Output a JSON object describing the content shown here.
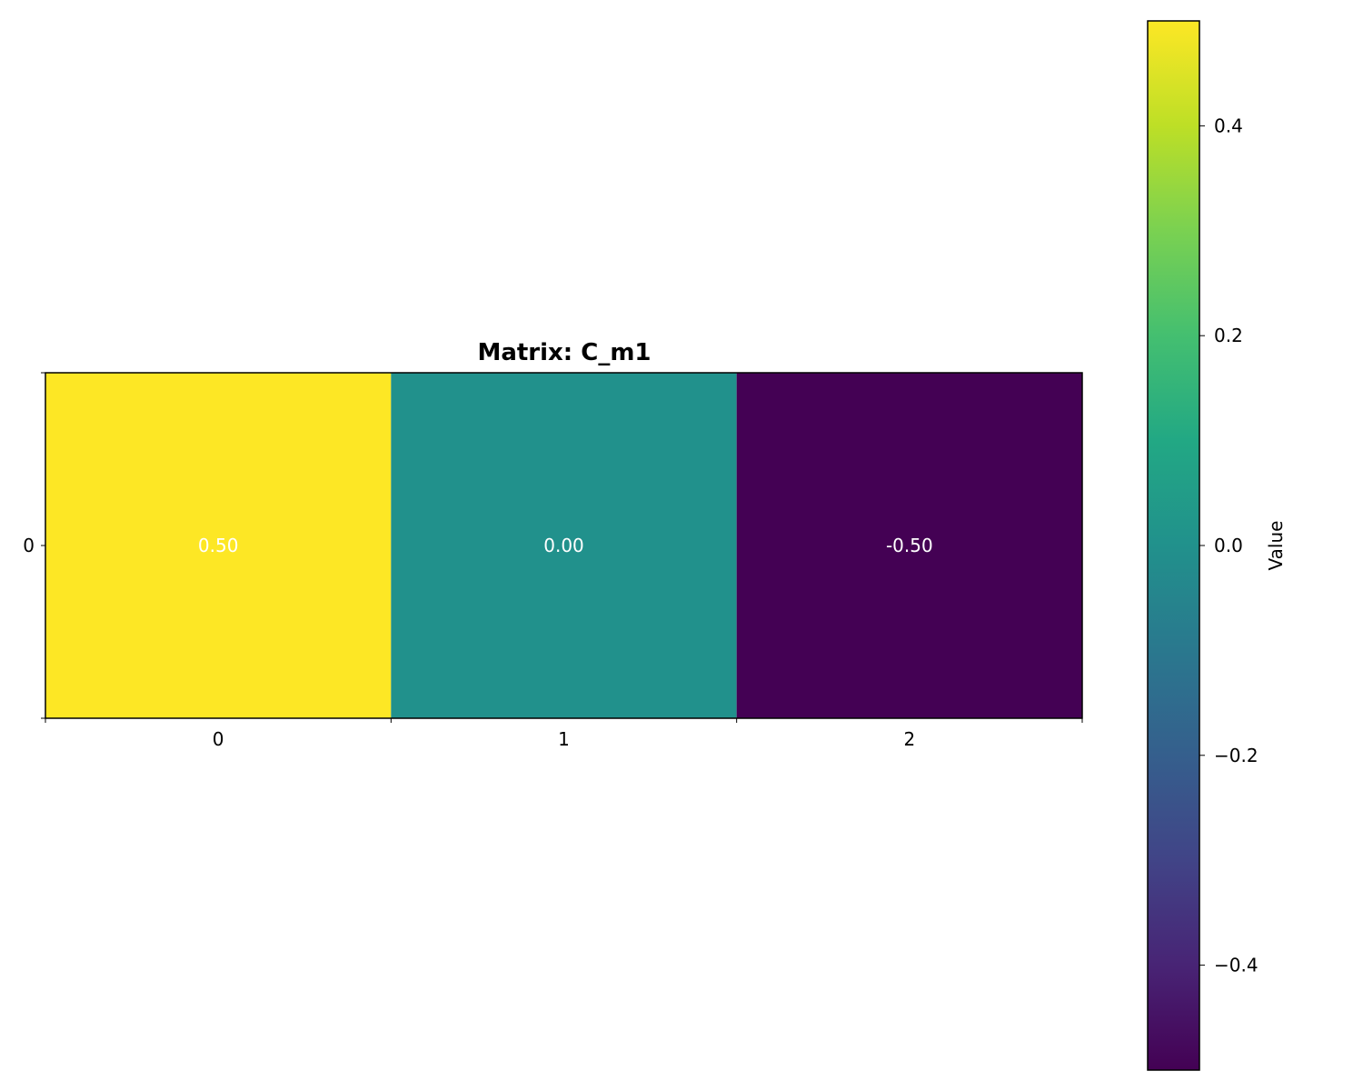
{
  "chart_data": {
    "type": "heatmap",
    "title": "Matrix: C_m1",
    "rows": [
      "0"
    ],
    "columns": [
      "0",
      "1",
      "2"
    ],
    "values": [
      [
        0.5,
        0.0,
        -0.5
      ]
    ],
    "cell_labels": [
      [
        "0.50",
        "0.00",
        "-0.50"
      ]
    ],
    "colormap": "viridis",
    "vmin": -0.5,
    "vmax": 0.5,
    "colorbar": {
      "label": "Value",
      "ticks": [
        0.4,
        0.2,
        0.0,
        -0.2,
        -0.4
      ],
      "tick_labels": [
        "0.4",
        "0.2",
        "0.0",
        "−0.2",
        "−0.4"
      ]
    },
    "grid": false
  }
}
